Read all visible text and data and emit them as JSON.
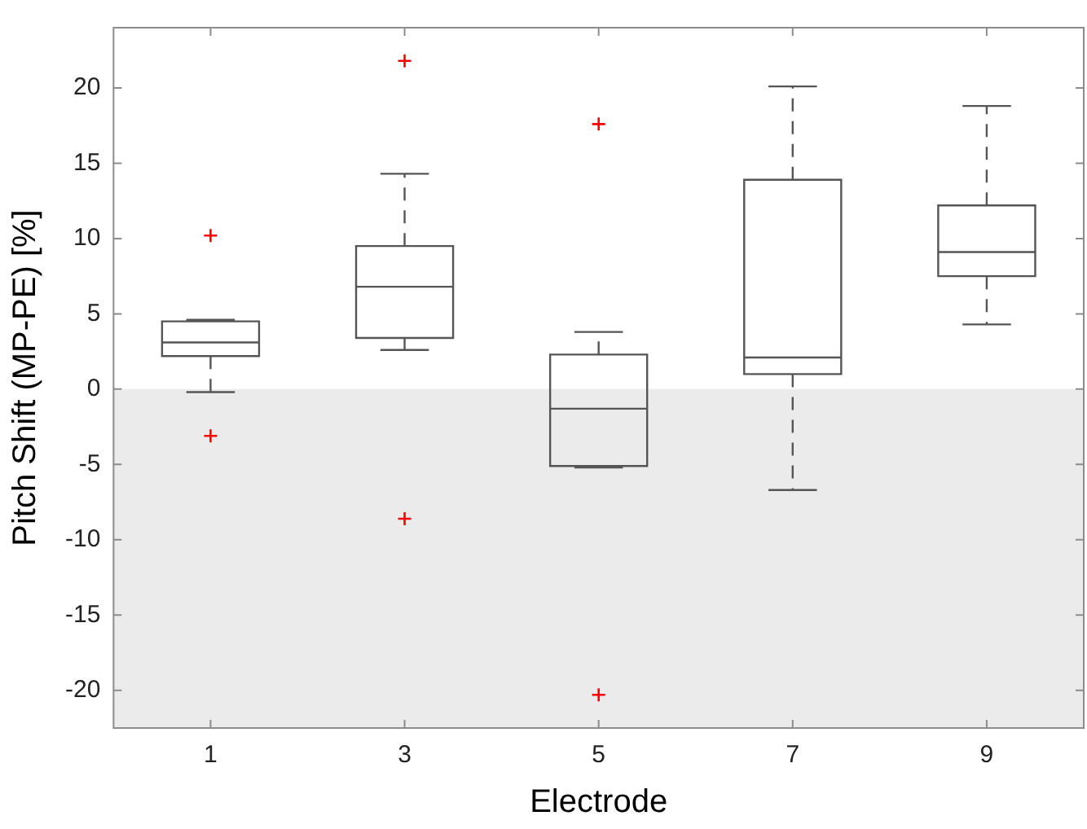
{
  "chart_data": {
    "type": "box",
    "xlabel": "Electrode",
    "ylabel": "Pitch Shift (MP-PE) [%]",
    "categories": [
      "1",
      "3",
      "5",
      "7",
      "9"
    ],
    "ylim": [
      -22.5,
      24
    ],
    "yticks": [
      -20,
      -15,
      -10,
      -5,
      0,
      5,
      10,
      15,
      20
    ],
    "grid": false,
    "legend": false,
    "marker": "cross",
    "bands": [
      {
        "axis": "y",
        "from": -22.5,
        "to": 0,
        "color": "#ebebeb"
      }
    ],
    "series": [
      {
        "color": "#555555",
        "boxes": [
          {
            "low": -0.2,
            "q1": 2.2,
            "median": 3.1,
            "q3": 4.5,
            "high": 4.6,
            "outliers": [
              10.2,
              -3.1
            ]
          },
          {
            "low": 2.6,
            "q1": 3.4,
            "median": 6.8,
            "q3": 9.5,
            "high": 14.3,
            "outliers": [
              21.8,
              -8.6
            ]
          },
          {
            "low": -5.2,
            "q1": -5.1,
            "median": -1.3,
            "q3": 2.3,
            "high": 3.8,
            "outliers": [
              17.6,
              -20.3
            ]
          },
          {
            "low": -6.7,
            "q1": 1.0,
            "median": 2.1,
            "q3": 13.9,
            "high": 20.1
          },
          {
            "low": 4.3,
            "q1": 7.5,
            "median": 9.1,
            "q3": 12.2,
            "high": 18.8
          }
        ]
      }
    ]
  }
}
